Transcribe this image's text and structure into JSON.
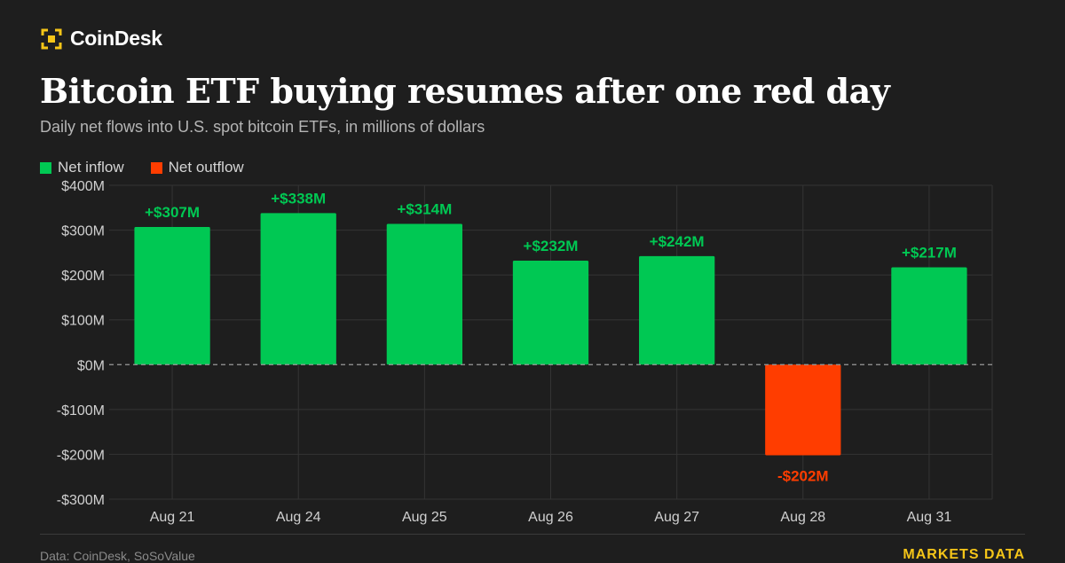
{
  "brand": {
    "name": "CoinDesk",
    "icon": "coindesk-logo-icon",
    "color": "#f5c518"
  },
  "header": {
    "title": "Bitcoin ETF buying resumes after one red day",
    "subtitle": "Daily net flows into U.S. spot bitcoin ETFs, in millions of dollars"
  },
  "legend": {
    "inflow": {
      "label": "Net inflow",
      "color": "#00c853"
    },
    "outflow": {
      "label": "Net outflow",
      "color": "#ff3d00"
    }
  },
  "footer": {
    "source": "Data: CoinDesk, SoSoValue",
    "tag": "MARKETS DATA"
  },
  "chart_data": {
    "type": "bar",
    "categories": [
      "Aug 21",
      "Aug 24",
      "Aug 25",
      "Aug 26",
      "Aug 27",
      "Aug 28",
      "Aug 31"
    ],
    "values": [
      307,
      338,
      314,
      232,
      242,
      -202,
      217
    ],
    "data_labels": [
      "+$307M",
      "+$338M",
      "+$314M",
      "+$232M",
      "+$242M",
      "-$202M",
      "+$217M"
    ],
    "ylim": [
      -300,
      400
    ],
    "yticks": [
      400,
      300,
      200,
      100,
      0,
      -100,
      -200,
      -300
    ],
    "ytick_labels": [
      "$400M",
      "$300M",
      "$200M",
      "$100M",
      "$0M",
      "-$100M",
      "-$200M",
      "-$300M"
    ],
    "grid": true,
    "legend_position": "top-left",
    "zero_line": "dashed",
    "colors": {
      "positive": "#00c853",
      "negative": "#ff3d00"
    }
  }
}
